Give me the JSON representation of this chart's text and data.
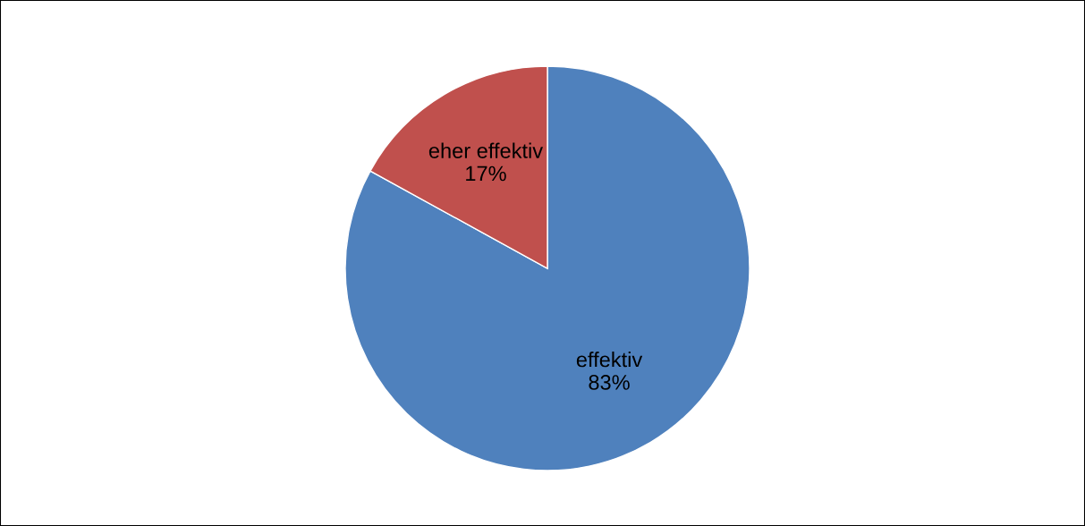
{
  "chart_data": {
    "type": "pie",
    "categories": [
      "effektiv",
      "eher effektiv"
    ],
    "values": [
      83,
      17
    ],
    "colors": [
      "#4f81bd",
      "#c0504d"
    ],
    "value_labels": [
      "83%",
      "17%"
    ]
  }
}
